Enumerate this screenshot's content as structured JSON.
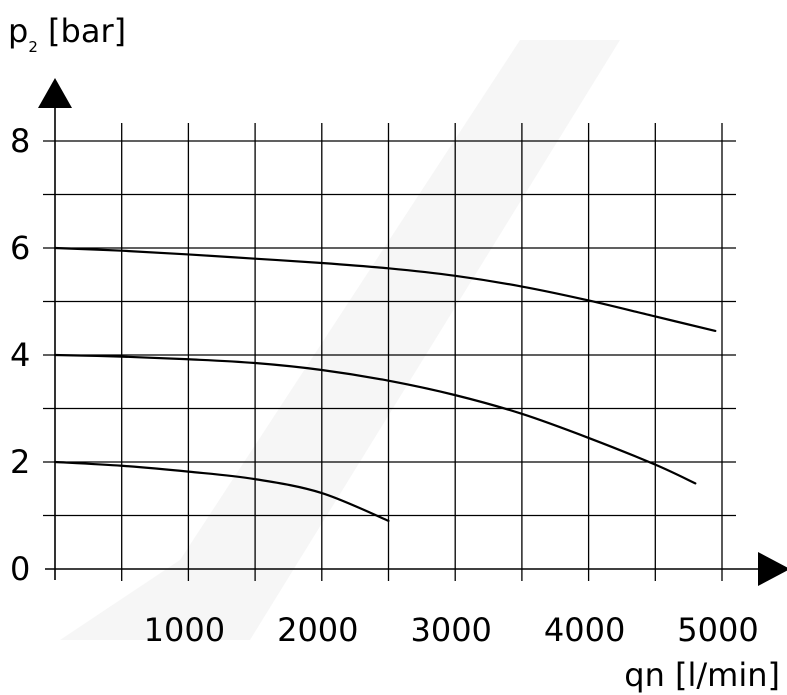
{
  "chart_data": {
    "type": "line",
    "xlabel": "qn [l/min]",
    "ylabel_main": "p",
    "ylabel_sub": "2",
    "ylabel_unit": " [bar]",
    "xlim": [
      0,
      5000
    ],
    "ylim": [
      0,
      8
    ],
    "x_ticks": [
      {
        "value": 1000,
        "label": "1000"
      },
      {
        "value": 2000,
        "label": "2000"
      },
      {
        "value": 3000,
        "label": "3000"
      },
      {
        "value": 4000,
        "label": "4000"
      },
      {
        "value": 5000,
        "label": "5000"
      }
    ],
    "y_ticks": [
      {
        "value": 0,
        "label": "0"
      },
      {
        "value": 2,
        "label": "2"
      },
      {
        "value": 4,
        "label": "4"
      },
      {
        "value": 6,
        "label": "6"
      },
      {
        "value": 8,
        "label": "8"
      }
    ],
    "grid": true,
    "grid_x_step": 500,
    "grid_y_step": 1,
    "series": [
      {
        "x": [
          0,
          500,
          1000,
          1500,
          2000,
          2500
        ],
        "y": [
          2.0,
          1.93,
          1.82,
          1.68,
          1.42,
          0.9
        ]
      },
      {
        "x": [
          0,
          500,
          1000,
          1500,
          2000,
          2500,
          3000,
          3500,
          4000,
          4500,
          4800
        ],
        "y": [
          4.0,
          3.97,
          3.92,
          3.85,
          3.72,
          3.52,
          3.25,
          2.9,
          2.45,
          1.95,
          1.6
        ]
      },
      {
        "x": [
          0,
          500,
          1000,
          1500,
          2000,
          2500,
          3000,
          3500,
          4000,
          4500,
          4950
        ],
        "y": [
          6.0,
          5.95,
          5.88,
          5.8,
          5.72,
          5.62,
          5.48,
          5.28,
          5.02,
          4.72,
          4.45
        ]
      }
    ]
  }
}
